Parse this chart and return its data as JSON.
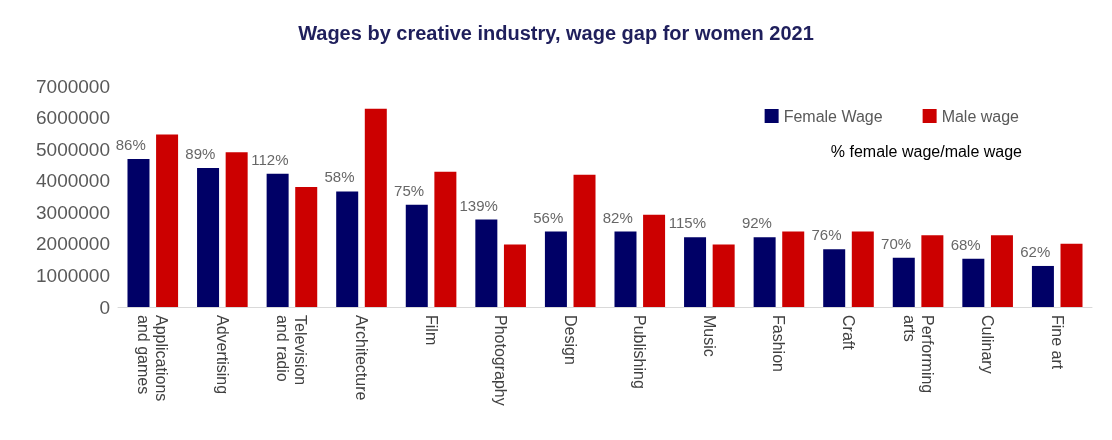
{
  "chart_data": {
    "type": "bar",
    "title": "Wages by creative industry, wage gap for women 2021",
    "categories": [
      "Applications and games",
      "Advertising",
      "Television and radio",
      "Architecture",
      "Film",
      "Photography",
      "Design",
      "Publishing",
      "Music",
      "Fashion",
      "Craft",
      "Performing arts",
      "Culinary",
      "Fine art"
    ],
    "series": [
      {
        "name": "Female Wage",
        "color": "#000066",
        "values": [
          4690000,
          4400000,
          4220000,
          3660000,
          3240000,
          2770000,
          2390000,
          2390000,
          2210000,
          2210000,
          1830000,
          1560000,
          1530000,
          1300000
        ]
      },
      {
        "name": "Male wage",
        "color": "#cc0000",
        "values": [
          5460000,
          4900000,
          3800000,
          6280000,
          4280000,
          1980000,
          4190000,
          2920000,
          1980000,
          2390000,
          2390000,
          2270000,
          2270000,
          2000000
        ]
      }
    ],
    "ylim": [
      0,
      7000000
    ],
    "yticks": [
      0,
      1000000,
      2000000,
      3000000,
      4000000,
      5000000,
      6000000,
      7000000
    ],
    "grid": false,
    "legend": "top right",
    "annotations": [
      "% female wage/male wage",
      {
        "text": "86%",
        "x": "Applications and games",
        "y": 4690000
      },
      {
        "text": "89%",
        "x": "Advertising",
        "y": 4400000
      },
      {
        "text": "112%",
        "x": "Television and radio",
        "y": 4220000
      },
      {
        "text": "58%",
        "x": "Architecture",
        "y": 3660000
      },
      {
        "text": "75%",
        "x": "Film",
        "y": 3240000
      },
      {
        "text": "139%",
        "x": "Photography",
        "y": 2770000
      },
      {
        "text": "56%",
        "x": "Design",
        "y": 2390000
      },
      {
        "text": "82%",
        "x": "Publishing",
        "y": 2390000
      },
      {
        "text": "115%",
        "x": "Music",
        "y": 2210000
      },
      {
        "text": "92%",
        "x": "Fashion",
        "y": 2210000
      },
      {
        "text": "76%",
        "x": "Craft",
        "y": 1830000
      },
      {
        "text": "70%",
        "x": "Performing arts",
        "y": 1560000
      },
      {
        "text": "68%",
        "x": "Culinary",
        "y": 1530000
      },
      {
        "text": "62%",
        "x": "Fine art",
        "y": 1300000
      }
    ]
  }
}
